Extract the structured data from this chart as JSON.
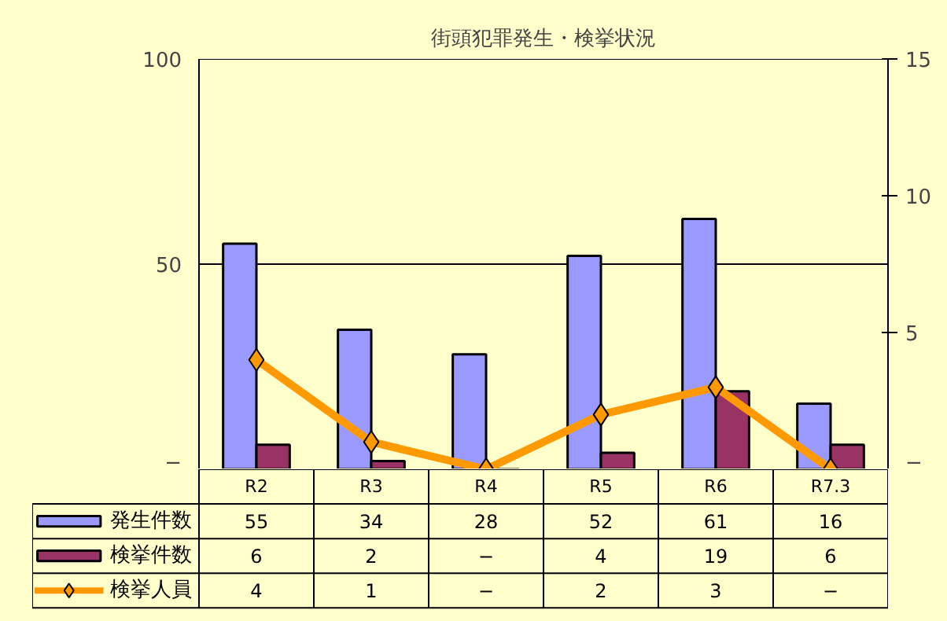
{
  "chart_data": {
    "type": "bar",
    "title": "街頭犯罪発生・検挙状況",
    "categories": [
      "R2",
      "R3",
      "R4",
      "R5",
      "R6",
      "R7.3"
    ],
    "series": [
      {
        "name": "発生件数",
        "color": "#9999ff",
        "values": [
          55,
          34,
          28,
          52,
          61,
          16
        ],
        "value_labels": [
          "55",
          "34",
          "28",
          "52",
          "61",
          "16"
        ]
      },
      {
        "name": "検挙件数",
        "color": "#993366",
        "values": [
          6,
          2,
          null,
          4,
          19,
          6
        ],
        "value_labels": [
          "6",
          "2",
          "−",
          "4",
          "19",
          "6"
        ]
      },
      {
        "name": "検挙人員",
        "type": "line",
        "axis": "y2",
        "marker": "diamond",
        "color": "#ff9900",
        "values": [
          4,
          1,
          0,
          2,
          3,
          0
        ],
        "value_labels": [
          "4",
          "1",
          "−",
          "2",
          "3",
          "−"
        ]
      }
    ],
    "ylim": [
      0,
      100
    ],
    "yticks": [
      {
        "value": 0,
        "label": "−"
      },
      50,
      100
    ],
    "y2lim": [
      0,
      15
    ],
    "y2ticks": [
      {
        "value": 0,
        "label": "−"
      },
      5,
      10,
      15
    ],
    "grid": "y",
    "legend": "bottom"
  }
}
